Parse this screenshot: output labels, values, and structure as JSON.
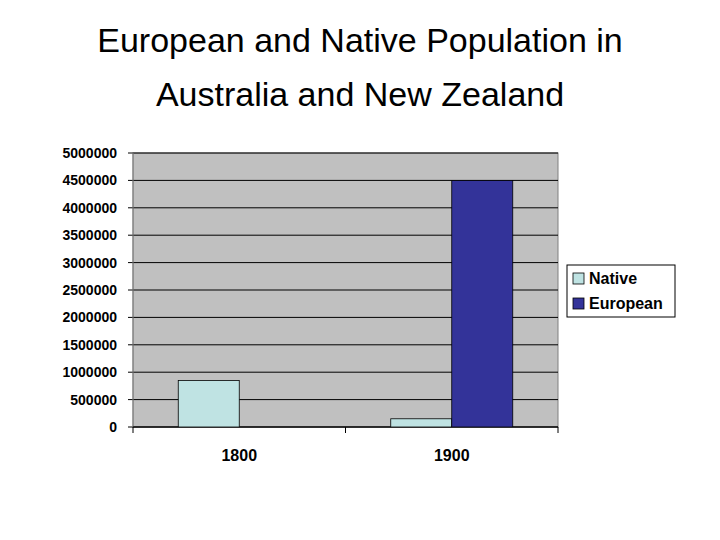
{
  "chart_data": {
    "type": "bar",
    "title": "European and Native Population in Australia and New Zealand",
    "categories": [
      "1800",
      "1900"
    ],
    "series": [
      {
        "name": "Native",
        "color": "#bfe3e3",
        "values": [
          850000,
          150000
        ]
      },
      {
        "name": "European",
        "color": "#333399",
        "values": [
          0,
          4500000
        ]
      }
    ],
    "ylim": [
      0,
      5000000
    ],
    "yticks": [
      0,
      500000,
      1000000,
      1500000,
      2000000,
      2500000,
      3000000,
      3500000,
      4000000,
      4500000,
      5000000
    ],
    "grid": true,
    "legend": "right"
  }
}
